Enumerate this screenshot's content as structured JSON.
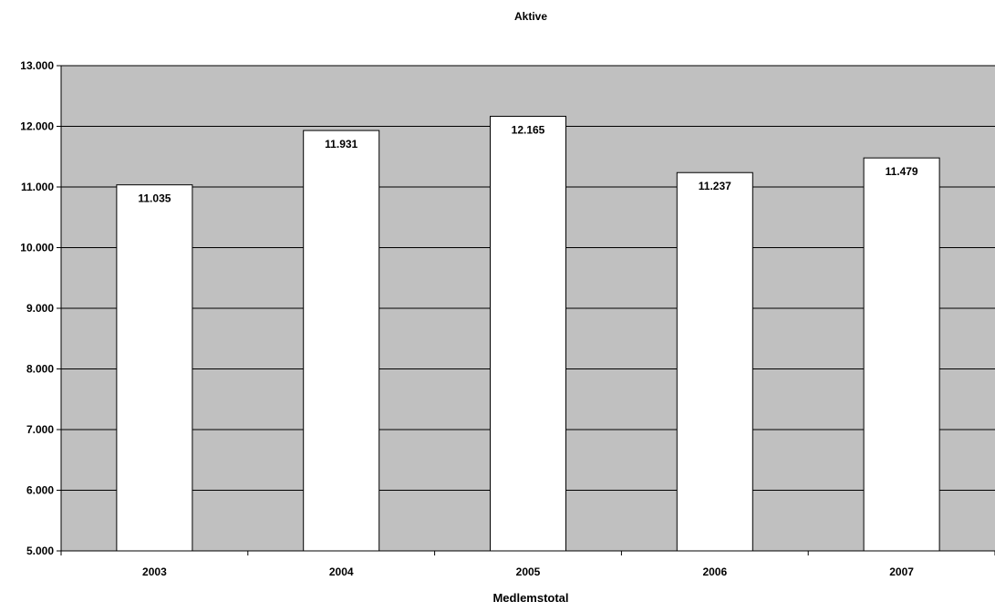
{
  "chart_data": {
    "type": "bar",
    "title": "Aktive",
    "xlabel": "Medlemstotal",
    "ylabel": "",
    "categories": [
      "2003",
      "2004",
      "2005",
      "2006",
      "2007"
    ],
    "values": [
      11035,
      11931,
      12165,
      11237,
      11479
    ],
    "value_labels": [
      "11.035",
      "11.931",
      "12.165",
      "11.237",
      "11.479"
    ],
    "ylim": [
      5000,
      13000
    ],
    "yticks": [
      5000,
      6000,
      7000,
      8000,
      9000,
      10000,
      11000,
      12000,
      13000
    ],
    "ytick_labels": [
      "5.000",
      "6.000",
      "7.000",
      "8.000",
      "9.000",
      "10.000",
      "11.000",
      "12.000",
      "13.000"
    ],
    "grid": true,
    "colors": {
      "plot_background": "#c0c0c0",
      "bar_fill": "#ffffff",
      "bar_stroke": "#000000",
      "gridline": "#000000"
    }
  }
}
